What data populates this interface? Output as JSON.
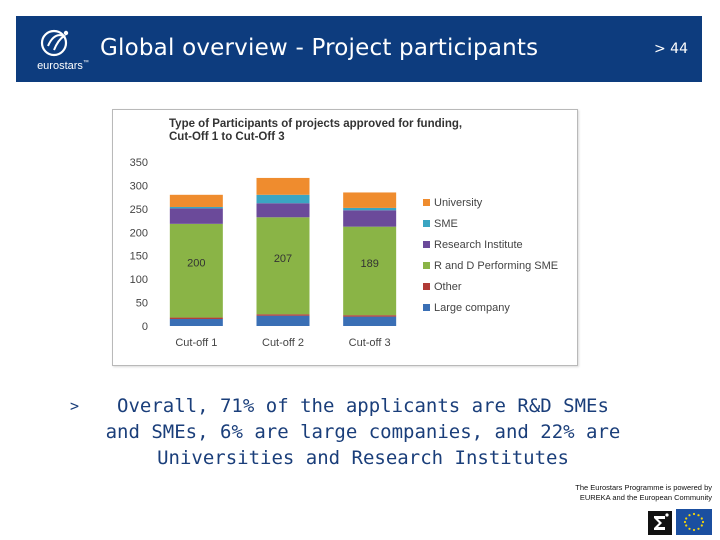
{
  "header": {
    "title": "Global overview - Project participants",
    "page_number": "> 44",
    "logo_text": "eurostars",
    "logo_mark": "™"
  },
  "chart_data": {
    "type": "bar",
    "stacked": true,
    "title": "Type of Participants of projects approved for funding,",
    "subtitle": "Cut-Off 1 to Cut-Off 3",
    "categories": [
      "Cut-off 1",
      "Cut-off 2",
      "Cut-off 3"
    ],
    "ylim": [
      0,
      350
    ],
    "yticks": [
      0,
      50,
      100,
      150,
      200,
      250,
      300,
      350
    ],
    "series": [
      {
        "name": "Large company",
        "color": "#3a6fb5",
        "values": [
          15,
          22,
          20
        ]
      },
      {
        "name": "Other",
        "color": "#b03a36",
        "values": [
          3,
          3,
          3
        ]
      },
      {
        "name": "R and D Performing SME",
        "color": "#8ab446",
        "values": [
          200,
          207,
          189
        ]
      },
      {
        "name": "Research Institute",
        "color": "#6b4a9a",
        "values": [
          33,
          30,
          35
        ]
      },
      {
        "name": "SME",
        "color": "#3aa5c2",
        "values": [
          3,
          18,
          5
        ]
      },
      {
        "name": "University",
        "color": "#ef8c2e",
        "values": [
          26,
          36,
          33
        ]
      }
    ],
    "data_labels": [
      {
        "series": "R and D Performing SME",
        "values": [
          "200",
          "207",
          "189"
        ]
      }
    ],
    "legend_order": [
      "University",
      "SME",
      "Research Institute",
      "R and D Performing SME",
      "Other",
      "Large company"
    ],
    "legend_position": "right"
  },
  "bullet": {
    "marker": ">",
    "text": "Overall, 71% of the applicants are R&D SMEs and SMEs, 6% are large companies, and 22% are Universities and Research Institutes"
  },
  "footer": {
    "line1": "The Eurostars Programme is powered by",
    "line2": "EUREKA and the European Community"
  },
  "colors": {
    "header_bg": "#0d3c7e",
    "bullet_text": "#1a3e7a"
  }
}
